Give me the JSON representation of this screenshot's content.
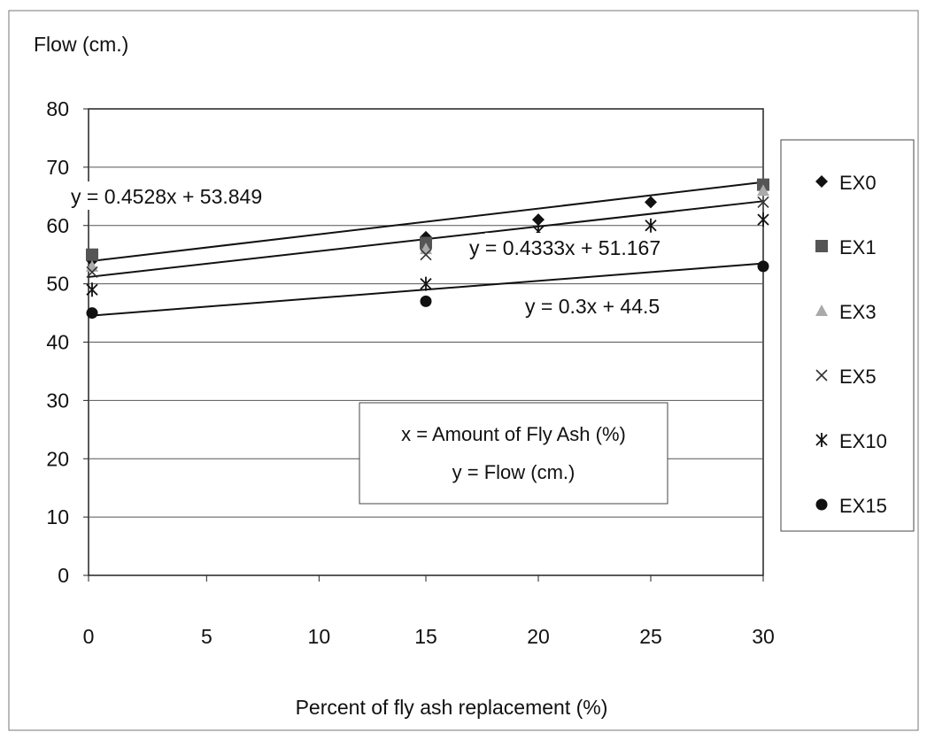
{
  "chart_data": {
    "type": "scatter",
    "ylabel": "Flow (cm.)",
    "xlabel": "Percent of fly ash replacement (%)",
    "xlim": [
      0,
      30
    ],
    "ylim": [
      0,
      80
    ],
    "x_ticks": [
      0,
      5,
      10,
      15,
      20,
      25,
      30
    ],
    "y_ticks": [
      0,
      10,
      20,
      30,
      40,
      50,
      60,
      70,
      80
    ],
    "grid": "horizontal",
    "legend_position": "right",
    "series": [
      {
        "name": "EX0",
        "marker": "diamond",
        "color": "#111111",
        "x": [
          0,
          15,
          20,
          25,
          30
        ],
        "y": [
          54,
          58,
          61,
          64,
          67
        ]
      },
      {
        "name": "EX1",
        "marker": "square",
        "color": "#555555",
        "x": [
          0,
          15,
          30
        ],
        "y": [
          55,
          57,
          67
        ]
      },
      {
        "name": "EX3",
        "marker": "triangle",
        "color": "#aaaaaa",
        "x": [
          0,
          15,
          30
        ],
        "y": [
          53,
          56,
          66
        ]
      },
      {
        "name": "EX5",
        "marker": "x",
        "color": "#333333",
        "x": [
          0,
          15,
          30
        ],
        "y": [
          52,
          55,
          64
        ]
      },
      {
        "name": "EX10",
        "marker": "star",
        "color": "#111111",
        "x": [
          0,
          15,
          20,
          25,
          30
        ],
        "y": [
          49,
          50,
          59,
          60,
          61
        ]
      },
      {
        "name": "EX15",
        "marker": "circle",
        "color": "#111111",
        "x": [
          0,
          15,
          30
        ],
        "y": [
          45,
          47,
          53
        ]
      }
    ],
    "trendlines": [
      {
        "equation": "y = 0.4528x + 53.849",
        "slope": 0.4528,
        "intercept": 53.849
      },
      {
        "equation": "y = 0.4333x + 51.167",
        "slope": 0.4333,
        "intercept": 51.167
      },
      {
        "equation": "y = 0.3x + 44.5",
        "slope": 0.3,
        "intercept": 44.5
      }
    ],
    "annotation": [
      "x = Amount of Fly Ash (%)",
      "y = Flow (cm.)"
    ]
  }
}
